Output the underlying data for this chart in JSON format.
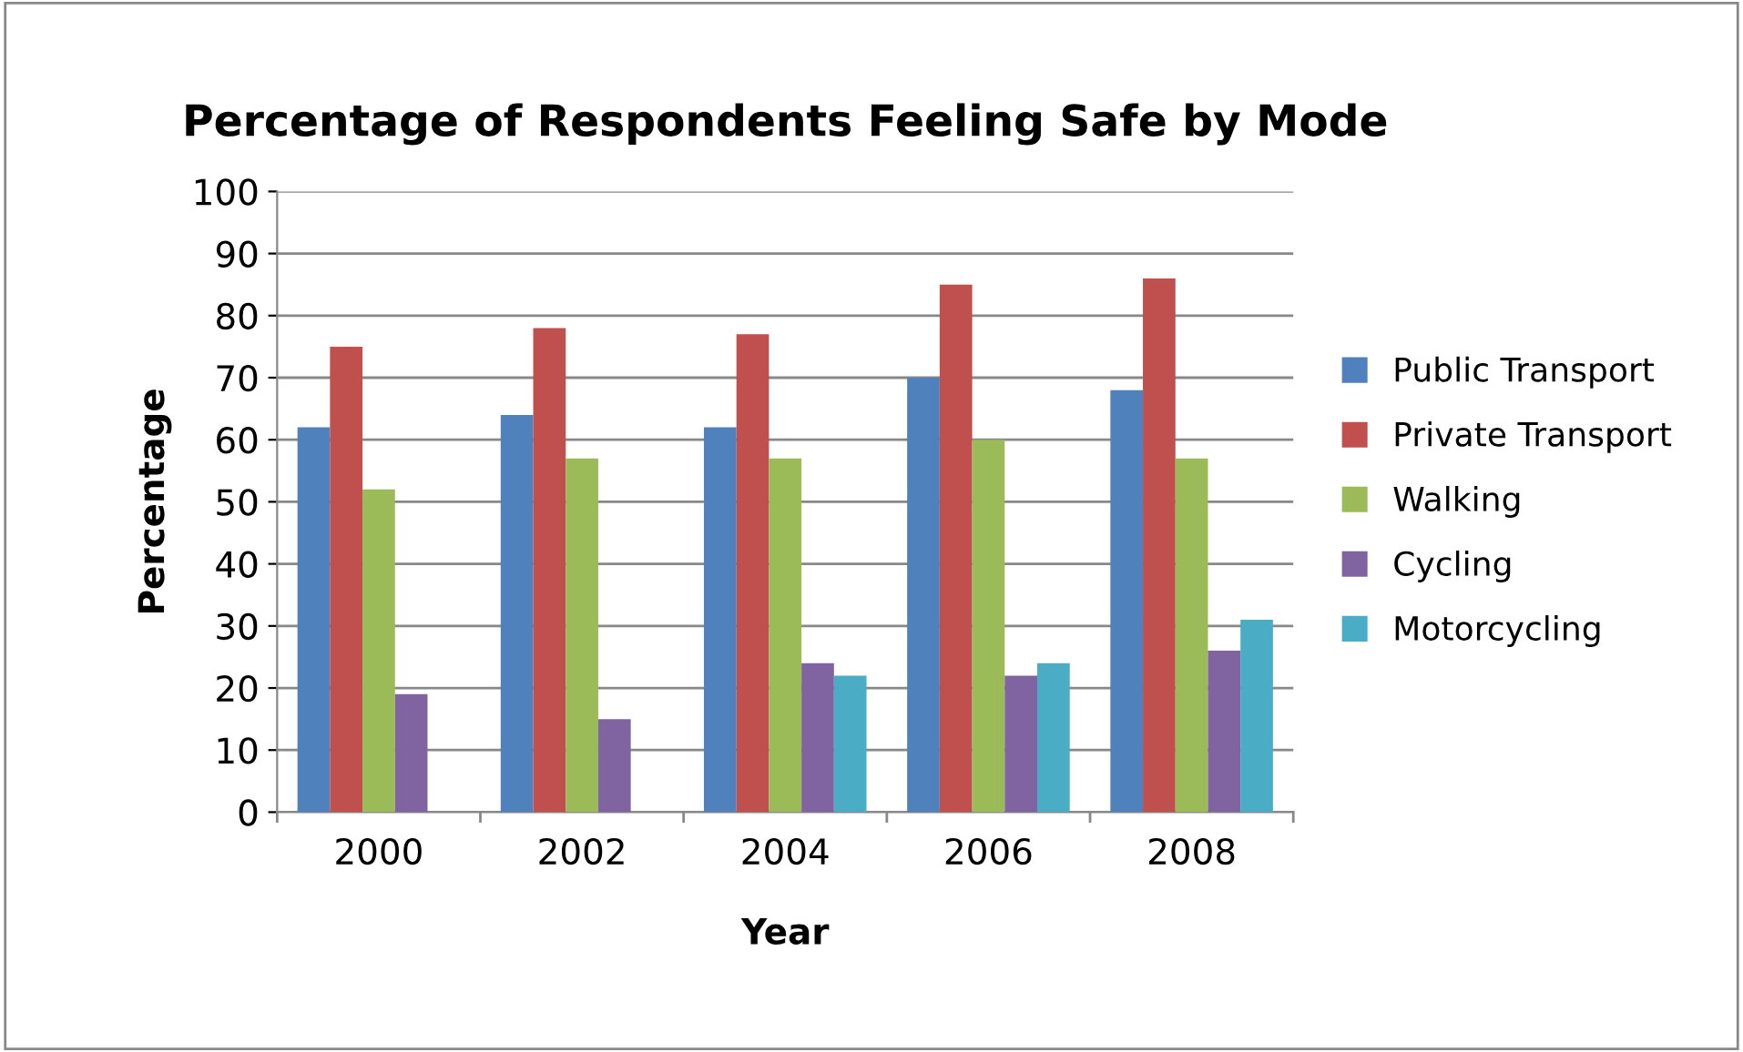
{
  "chart_data": {
    "type": "bar",
    "title": "Percentage of Respondents Feeling Safe by Mode",
    "xlabel": "Year",
    "ylabel": "Percentage",
    "categories": [
      "2000",
      "2002",
      "2004",
      "2006",
      "2008"
    ],
    "series": [
      {
        "name": "Public Transport",
        "color": "#4f81bd",
        "values": [
          62,
          64,
          62,
          70,
          68
        ]
      },
      {
        "name": "Private Transport",
        "color": "#c0504d",
        "values": [
          75,
          78,
          77,
          85,
          86
        ]
      },
      {
        "name": "Walking",
        "color": "#9bbb59",
        "values": [
          52,
          57,
          57,
          60,
          57
        ]
      },
      {
        "name": "Cycling",
        "color": "#8064a2",
        "values": [
          19,
          15,
          24,
          22,
          26
        ]
      },
      {
        "name": "Motorcycling",
        "color": "#4bacc6",
        "values": [
          null,
          null,
          22,
          24,
          31
        ]
      }
    ],
    "ylim": [
      0,
      100
    ],
    "yticks": [
      0,
      10,
      20,
      30,
      40,
      50,
      60,
      70,
      80,
      90,
      100
    ],
    "grid": "y",
    "legend": "right"
  }
}
